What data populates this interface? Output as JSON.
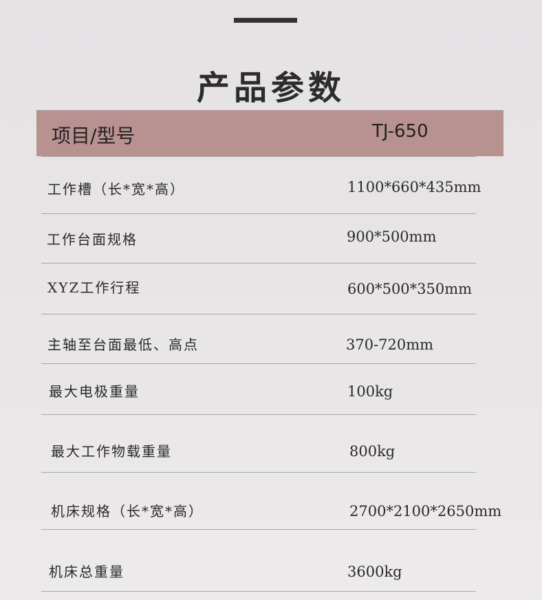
{
  "title": "产品参数",
  "header": {
    "label": "项目/型号",
    "model": "TJ-650"
  },
  "rows": [
    {
      "label": "工作槽（长*宽*高）",
      "value": "1100*660*435mm"
    },
    {
      "label": "工作台面规格",
      "value": "900*500mm"
    },
    {
      "label": "XYZ工作行程",
      "value": "600*500*350mm"
    },
    {
      "label": "主轴至台面最低、高点",
      "value": "370-720mm"
    },
    {
      "label": "最大电极重量",
      "value": "100kg"
    },
    {
      "label": "最大工作物载重量",
      "value": "800kg"
    },
    {
      "label": "机床规格（长*宽*高）",
      "value": "2700*2100*2650mm"
    },
    {
      "label": "机床总重量",
      "value": "3600kg"
    }
  ]
}
